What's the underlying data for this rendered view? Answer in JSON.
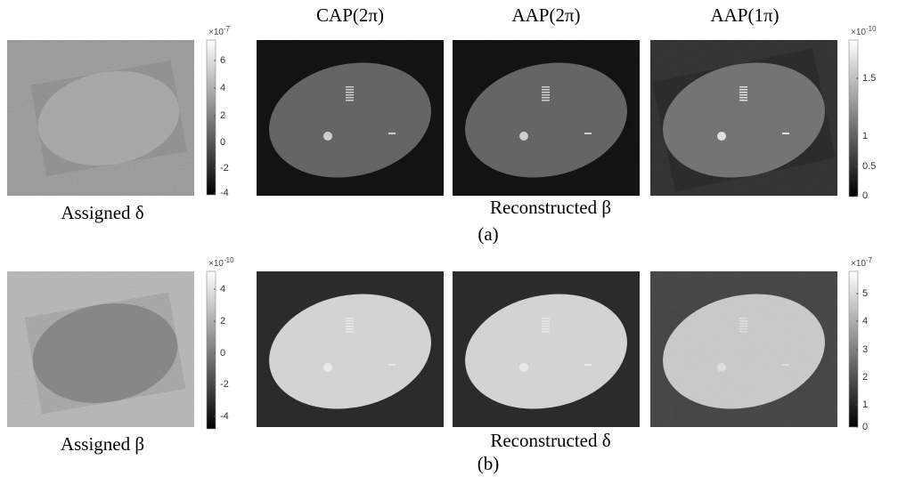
{
  "column_titles": [
    "CAP(2π)",
    "AAP(2π)",
    "AAP(1π)"
  ],
  "panels": [
    {
      "label": "(a)",
      "left_caption": "Assigned δ",
      "right_caption": "Reconstructed β",
      "left_colorbar": {
        "base": "×10",
        "power": "-7",
        "ticks": [
          "6",
          "4",
          "2",
          "0",
          "-2",
          "-4"
        ]
      },
      "right_colorbar": {
        "base": "×10",
        "power": "-10",
        "ticks": [
          "1.5",
          "1",
          "0.5",
          "0"
        ]
      }
    },
    {
      "label": "(b)",
      "left_caption": "Assigned β",
      "right_caption": "Reconstructed δ",
      "left_colorbar": {
        "base": "×10",
        "power": "-10",
        "ticks": [
          "4",
          "2",
          "0",
          "-2",
          "-4"
        ]
      },
      "right_colorbar": {
        "base": "×10",
        "power": "-7",
        "ticks": [
          "5",
          "4",
          "3",
          "2",
          "1",
          "0"
        ]
      }
    }
  ]
}
